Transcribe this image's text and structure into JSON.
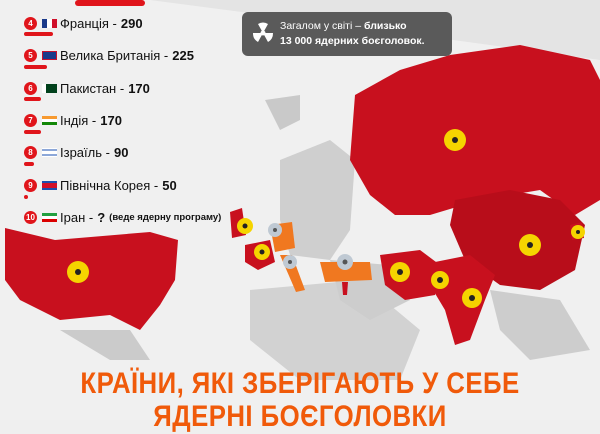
{
  "list": [
    {
      "rank": "4",
      "country": "Франція",
      "value": "290",
      "flag": "france"
    },
    {
      "rank": "5",
      "country": "Велика Британія",
      "value": "225",
      "flag": "uk"
    },
    {
      "rank": "6",
      "country": "Пакистан",
      "value": "170",
      "flag": "pakistan"
    },
    {
      "rank": "7",
      "country": "Індія",
      "value": "170",
      "flag": "india"
    },
    {
      "rank": "8",
      "country": "Ізраїль",
      "value": "90",
      "flag": "israel"
    },
    {
      "rank": "9",
      "country": "Північна Корея",
      "value": "50",
      "flag": "north-korea"
    },
    {
      "rank": "10",
      "country": "Іран",
      "value": "?",
      "note": "(веде ядерну програму)",
      "flag": "iran"
    }
  ],
  "info": {
    "line1_normal": "Загалом у світі – ",
    "line1_bold": "близько",
    "line2": "13 000 ядерних боєголовок.",
    "icon": "radiation-icon"
  },
  "title": {
    "line1": "КРАЇНИ, ЯКІ ЗБЕРІГАЮТЬ У СЕБЕ",
    "line2": "ЯДЕРНІ БОЄГОЛОВКИ"
  },
  "colors": {
    "nuclear_state": "#c8101e",
    "accent": "#e0151b",
    "nato_host": "#f07820",
    "title": "#f05a0a",
    "symbol": "#f5d400"
  }
}
